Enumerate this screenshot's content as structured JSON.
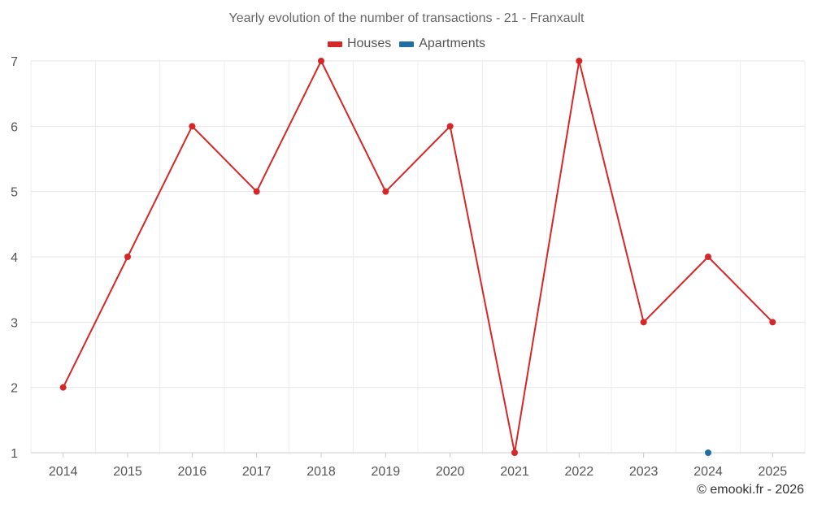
{
  "chart_data": {
    "type": "line",
    "title": "Yearly evolution of the number of transactions - 21 - Franxault",
    "x": [
      2014,
      2015,
      2016,
      2017,
      2018,
      2019,
      2020,
      2021,
      2022,
      2023,
      2024,
      2025
    ],
    "series": [
      {
        "name": "Houses",
        "color": "#d62728",
        "values": [
          2,
          4,
          6,
          5,
          7,
          5,
          6,
          1,
          7,
          3,
          4,
          3
        ]
      },
      {
        "name": "Apartments",
        "color": "#1f6fa5",
        "values": [
          null,
          null,
          null,
          null,
          null,
          null,
          null,
          null,
          null,
          null,
          1,
          null
        ]
      }
    ],
    "yticks": [
      1,
      2,
      3,
      4,
      5,
      6,
      7
    ],
    "ylim": [
      1,
      7
    ],
    "grid": true,
    "legend_position": "top-center",
    "xlabel": "",
    "ylabel": ""
  },
  "footer": {
    "copyright": "© emooki.fr - 2026"
  }
}
